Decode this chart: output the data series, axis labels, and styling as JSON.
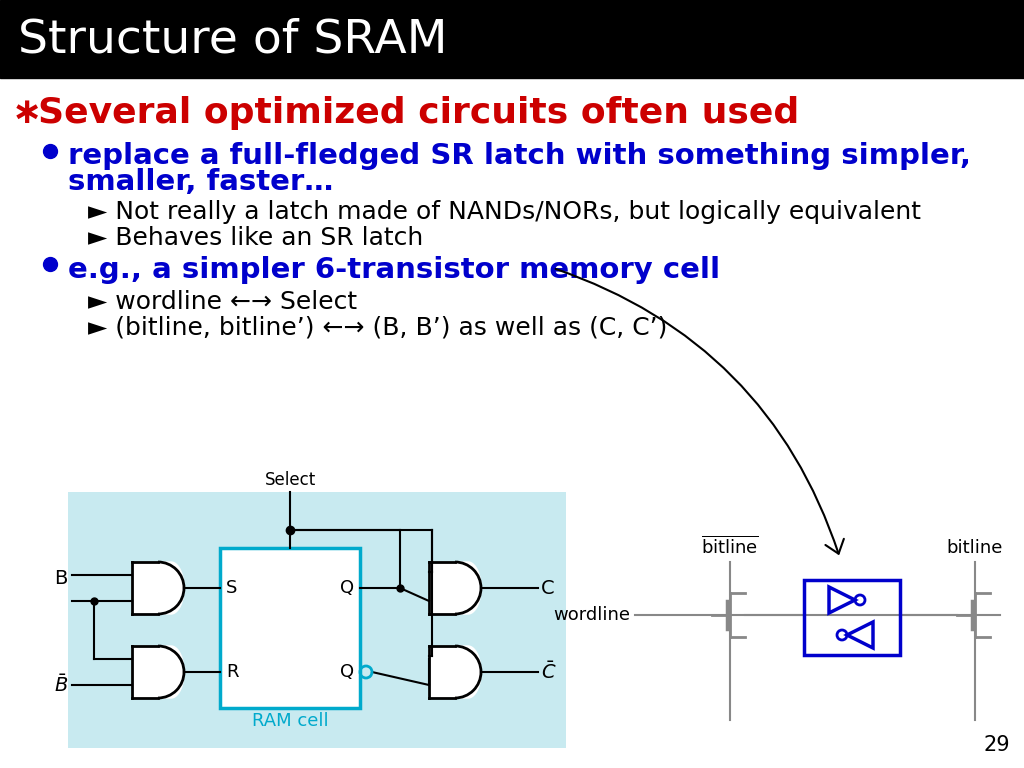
{
  "title": "Structure of SRAM",
  "title_bg": "#000000",
  "title_color": "#ffffff",
  "title_fontsize": 34,
  "bullet1_color": "#cc0000",
  "bullet1_symbol": "∗",
  "bullet1_text": " Several optimized circuits often used",
  "bullet1_fontsize": 26,
  "sub1_color": "#0000cc",
  "sub1_line1": "replace a full-fledged SR latch with something simpler,",
  "sub1_line2": "smaller, faster…",
  "sub1_fontsize": 21,
  "sub2_items": [
    "Not really a latch made of NANDs/NORs, but logically equivalent",
    "Behaves like an SR latch"
  ],
  "sub2_fontsize": 18,
  "sub2_color": "#000000",
  "bullet2_color": "#0000cc",
  "bullet2_text": "e.g., a simpler 6-transistor memory cell",
  "bullet2_fontsize": 21,
  "sub3_items": [
    "wordline ←→ Select",
    "(bitline, bitline’) ←→ (B, B’) as well as (C, C’)"
  ],
  "sub3_fontsize": 18,
  "sub3_color": "#000000",
  "page_number": "29",
  "bg_color": "#ffffff",
  "light_blue": "#c8eaf0",
  "circuit_blue": "#00aacc",
  "gate_color": "#000000",
  "mosfet_blue": "#0000cc"
}
